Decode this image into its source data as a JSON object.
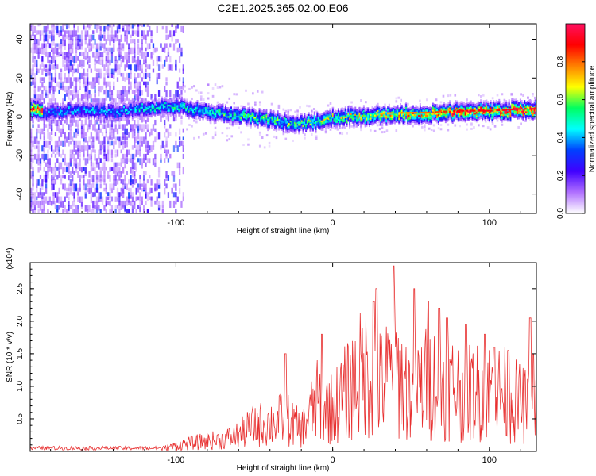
{
  "chart_data": [
    {
      "type": "heatmap",
      "title": "C2E1.2025.365.02.00.E06",
      "xlabel": "Height of straight line (km)",
      "ylabel": "Frequency (Hz)",
      "xlim": [
        -193,
        130
      ],
      "ylim": [
        -50,
        48
      ],
      "x_ticks": [
        "-100",
        "0",
        "100"
      ],
      "y_ticks": [
        "40",
        "20",
        "0",
        "-20",
        "-40"
      ],
      "colorbar": {
        "label": "Normalized spectral amplitude",
        "range": [
          0,
          1
        ],
        "ticks": [
          "0.0",
          "0.2",
          "0.4",
          "0.6",
          "0.8"
        ],
        "colors": [
          "#ffffff",
          "#b070ff",
          "#4000ff",
          "#0040ff",
          "#00ffff",
          "#00ff60",
          "#ffff00",
          "#ff8000",
          "#ff0000",
          "#ff1060"
        ]
      },
      "ridge": {
        "x": [
          -185,
          -160,
          -140,
          -120,
          -100,
          -80,
          -60,
          -40,
          -25,
          -10,
          0,
          20,
          40,
          60,
          80,
          100,
          120,
          130
        ],
        "y": [
          3,
          4,
          3,
          5,
          6,
          3,
          1,
          -1,
          -3,
          -2,
          0,
          1,
          2,
          2,
          3,
          3,
          4,
          4
        ],
        "amp": [
          0.35,
          0.4,
          0.4,
          0.45,
          0.5,
          0.5,
          0.55,
          0.55,
          0.55,
          0.6,
          0.6,
          0.65,
          0.7,
          0.75,
          0.85,
          0.85,
          0.9,
          0.9
        ]
      }
    },
    {
      "type": "line",
      "series_color": "#e83030",
      "xlabel": "Height of straight line (km)",
      "ylabel": "SNR (10 * v/v)",
      "multiplier": "(x10⁴)",
      "xlim": [
        -193,
        130
      ],
      "ylim": [
        0,
        2.9
      ],
      "x_ticks": [
        "-100",
        "0",
        "100"
      ],
      "y_ticks": [
        "0.5",
        "1.0",
        "1.5",
        "2.0",
        "2.5"
      ],
      "series": [
        {
          "x": [
            -193,
            -170,
            -150,
            -130,
            -110,
            -100,
            -90,
            -80,
            -70,
            -60,
            -50,
            -40,
            -30,
            -20,
            -10,
            0,
            10,
            20,
            30,
            40,
            50,
            60,
            70,
            80,
            90,
            100,
            110,
            120,
            130
          ],
          "y": [
            0.04,
            0.05,
            0.04,
            0.03,
            0.05,
            0.12,
            0.18,
            0.22,
            0.25,
            0.35,
            0.55,
            0.6,
            0.7,
            0.45,
            1.05,
            0.9,
            1.3,
            1.7,
            1.4,
            1.7,
            1.2,
            1.45,
            1.5,
            1.3,
            1.25,
            1.3,
            1.2,
            1.0,
            0.85
          ]
        }
      ],
      "peaks": [
        [
          -30,
          1.5
        ],
        [
          -7,
          1.8
        ],
        [
          26,
          2.3
        ],
        [
          28,
          2.5
        ],
        [
          39,
          2.85
        ],
        [
          52,
          2.5
        ],
        [
          61,
          2.3
        ],
        [
          68,
          2.2
        ],
        [
          73,
          2.05
        ],
        [
          85,
          1.95
        ],
        [
          97,
          1.8
        ],
        [
          103,
          1.6
        ],
        [
          112,
          1.55
        ],
        [
          126,
          2.05
        ],
        [
          128,
          1.5
        ]
      ]
    }
  ]
}
